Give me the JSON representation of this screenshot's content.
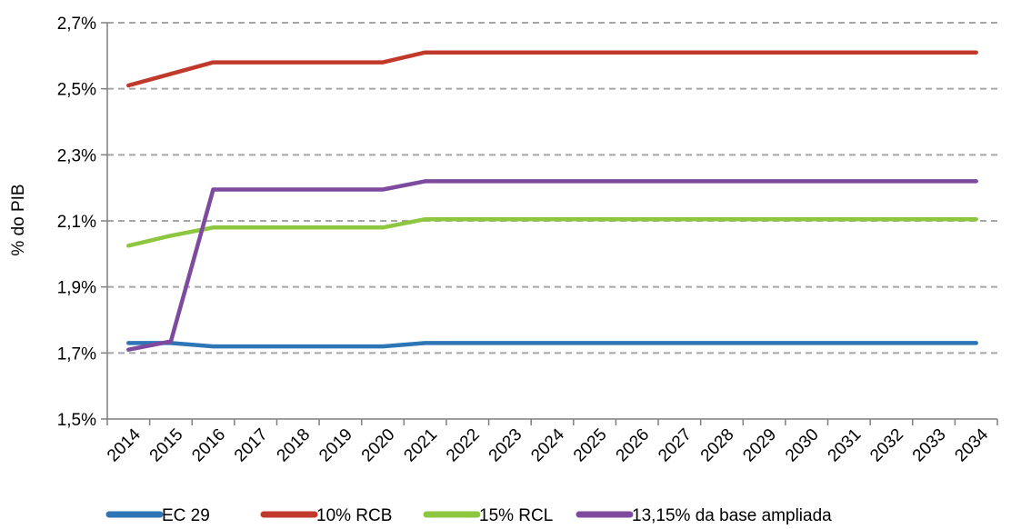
{
  "chart_data": {
    "type": "line",
    "title": "",
    "xlabel": "",
    "ylabel": "% do PIB",
    "x": [
      "2014",
      "2015",
      "2016",
      "2017",
      "2018",
      "2019",
      "2020",
      "2021",
      "2022",
      "2023",
      "2024",
      "2025",
      "2026",
      "2027",
      "2028",
      "2029",
      "2030",
      "2031",
      "2032",
      "2033",
      "2034"
    ],
    "ylim": [
      1.5,
      2.7
    ],
    "yticks": [
      1.5,
      1.7,
      1.9,
      2.1,
      2.3,
      2.5,
      2.7
    ],
    "ytick_labels": [
      "1,5%",
      "1,7%",
      "1,9%",
      "2,1%",
      "2,3%",
      "2,5%",
      "2,7%"
    ],
    "grid": true,
    "legend_position": "bottom",
    "series": [
      {
        "name": "EC 29",
        "color": "#2e75b6",
        "values": [
          1.73,
          1.73,
          1.72,
          1.72,
          1.72,
          1.72,
          1.72,
          1.73,
          1.73,
          1.73,
          1.73,
          1.73,
          1.73,
          1.73,
          1.73,
          1.73,
          1.73,
          1.73,
          1.73,
          1.73,
          1.73
        ]
      },
      {
        "name": "10% RCB",
        "color": "#c0392b",
        "values": [
          2.51,
          2.545,
          2.58,
          2.58,
          2.58,
          2.58,
          2.58,
          2.61,
          2.61,
          2.61,
          2.61,
          2.61,
          2.61,
          2.61,
          2.61,
          2.61,
          2.61,
          2.61,
          2.61,
          2.61,
          2.61
        ]
      },
      {
        "name": "15% RCL",
        "color": "#8dc63f",
        "values": [
          2.025,
          2.055,
          2.08,
          2.08,
          2.08,
          2.08,
          2.08,
          2.105,
          2.105,
          2.105,
          2.105,
          2.105,
          2.105,
          2.105,
          2.105,
          2.105,
          2.105,
          2.105,
          2.105,
          2.105,
          2.105
        ]
      },
      {
        "name": "13,15% da base ampliada",
        "color": "#7d4a9e",
        "values": [
          1.71,
          1.735,
          2.195,
          2.195,
          2.195,
          2.195,
          2.195,
          2.22,
          2.22,
          2.22,
          2.22,
          2.22,
          2.22,
          2.22,
          2.22,
          2.22,
          2.22,
          2.22,
          2.22,
          2.22,
          2.22
        ]
      }
    ]
  }
}
